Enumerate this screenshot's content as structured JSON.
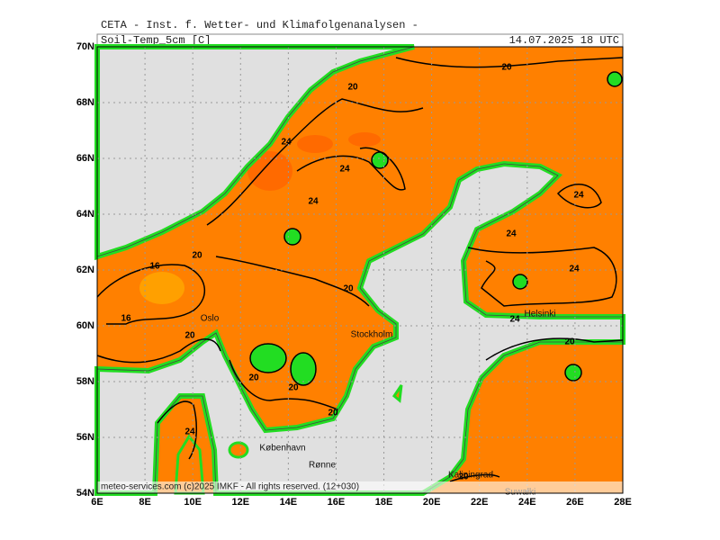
{
  "header": {
    "institute": "CETA - Inst. f. Wetter- und Klimafolgenanalysen -",
    "parameter": "Soil-Temp_5cm [C]",
    "valid_time": "14.07.2025 18 UTC"
  },
  "map": {
    "xticks": [
      {
        "value": 6,
        "label": "6E"
      },
      {
        "value": 8,
        "label": "8E"
      },
      {
        "value": 10,
        "label": "10E"
      },
      {
        "value": 12,
        "label": "12E"
      },
      {
        "value": 14,
        "label": "14E"
      },
      {
        "value": 16,
        "label": "16E"
      },
      {
        "value": 18,
        "label": "18E"
      },
      {
        "value": 20,
        "label": "20E"
      },
      {
        "value": 22,
        "label": "22E"
      },
      {
        "value": 24,
        "label": "24E"
      },
      {
        "value": 26,
        "label": "26E"
      },
      {
        "value": 28,
        "label": "28E"
      }
    ],
    "yticks": [
      {
        "value": 54,
        "label": "54N"
      },
      {
        "value": 56,
        "label": "56N"
      },
      {
        "value": 58,
        "label": "58N"
      },
      {
        "value": 60,
        "label": "60N"
      },
      {
        "value": 62,
        "label": "62N"
      },
      {
        "value": 64,
        "label": "64N"
      },
      {
        "value": 66,
        "label": "66N"
      },
      {
        "value": 68,
        "label": "68N"
      },
      {
        "value": 70,
        "label": "70N"
      }
    ],
    "xlim": [
      6,
      28
    ],
    "ylim": [
      54,
      70
    ],
    "contour_labels": [
      20,
      20,
      24,
      24,
      24,
      24,
      24,
      24,
      24,
      20,
      16,
      16,
      20,
      20,
      20,
      20,
      20,
      24,
      20,
      20
    ],
    "cities": [
      "Oslo",
      "Stockholm",
      "Helsinki",
      "København",
      "Rønne",
      "Kaliningrad",
      "Suwałki"
    ]
  },
  "footer": "meteo-services.com (c)2025 IMKF - All rights reserved. (12+030)"
}
